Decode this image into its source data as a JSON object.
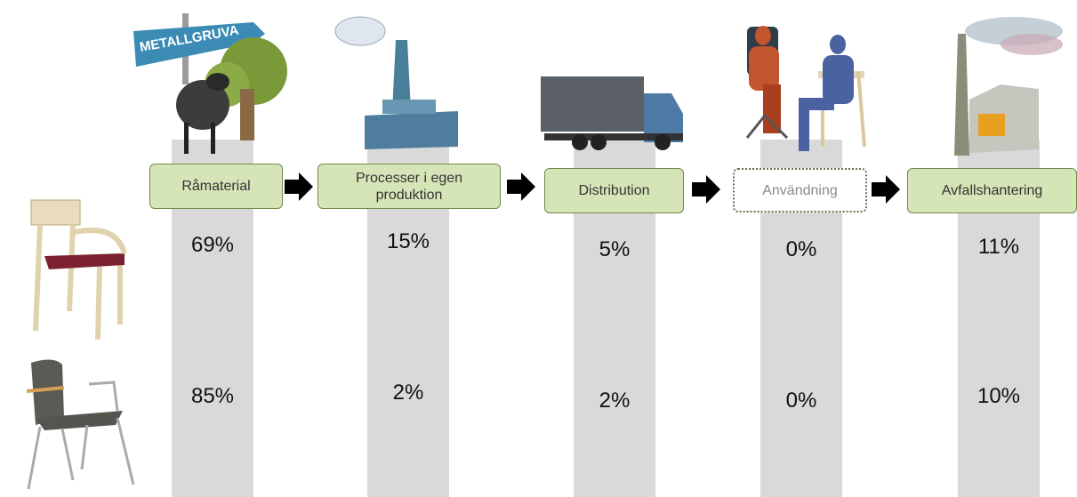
{
  "sign": "METALLGRUVA",
  "stages": [
    {
      "label": "Råmaterial"
    },
    {
      "label": "Processer i egen produktion"
    },
    {
      "label": "Distribution"
    },
    {
      "label": "Användning"
    },
    {
      "label": "Avfallshantering"
    }
  ],
  "rows": [
    {
      "values": [
        "69%",
        "15%",
        "5%",
        "0%",
        "11%"
      ]
    },
    {
      "values": [
        "85%",
        "2%",
        "2%",
        "0%",
        "10%"
      ]
    }
  ]
}
